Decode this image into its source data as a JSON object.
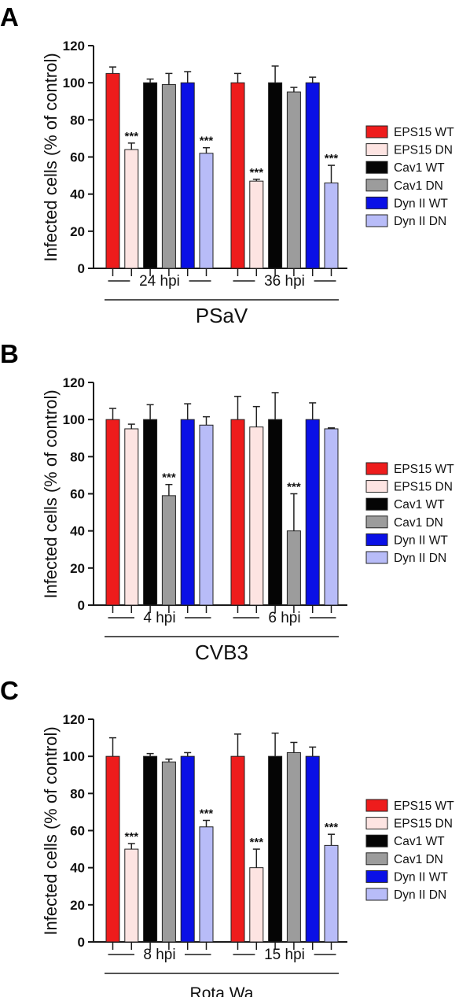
{
  "legend": [
    {
      "label": "EPS15 WT",
      "color": "#ee1c1c"
    },
    {
      "label": "EPS15 DN",
      "color": "#fde4e2"
    },
    {
      "label": "Cav1 WT",
      "color": "#050505"
    },
    {
      "label": "Cav1 DN",
      "color": "#9c9c9c"
    },
    {
      "label": "Dyn II WT",
      "color": "#0a10e6"
    },
    {
      "label": "Dyn II DN",
      "color": "#b8bcf8"
    }
  ],
  "chart_data": [
    {
      "type": "bar",
      "panel_label": "A",
      "title": "PSaV",
      "ylabel": "Infected cells (% of control)",
      "ylim": [
        0,
        120
      ],
      "yticks": [
        "0",
        "20",
        "40",
        "60",
        "80",
        "100",
        "120"
      ],
      "legend_position": "right",
      "grid": false,
      "groups": [
        {
          "label": "24 hpi",
          "values": [
            105,
            64,
            100,
            99,
            100,
            62
          ],
          "errors": [
            3.5,
            3.5,
            2,
            6,
            6,
            3
          ],
          "significance": [
            "",
            "***",
            "",
            "",
            "",
            "***"
          ]
        },
        {
          "label": "36 hpi",
          "values": [
            100,
            47,
            100,
            95,
            100,
            46
          ],
          "errors": [
            5,
            1,
            9,
            2.5,
            3,
            9.5
          ],
          "significance": [
            "",
            "***",
            "",
            "",
            "",
            "***"
          ]
        }
      ]
    },
    {
      "type": "bar",
      "panel_label": "B",
      "title": "CVB3",
      "ylabel": "Infected cells (% of control)",
      "ylim": [
        0,
        120
      ],
      "yticks": [
        "0",
        "20",
        "40",
        "60",
        "80",
        "100",
        "120"
      ],
      "legend_position": "right",
      "grid": false,
      "groups": [
        {
          "label": "4 hpi",
          "values": [
            100,
            95,
            100,
            59,
            100,
            97
          ],
          "errors": [
            6,
            2.5,
            8,
            6,
            8.5,
            4.5
          ],
          "significance": [
            "",
            "",
            "",
            "***",
            "",
            ""
          ]
        },
        {
          "label": "6 hpi",
          "values": [
            100,
            96,
            100,
            40,
            100,
            95
          ],
          "errors": [
            12.5,
            11,
            14.5,
            20,
            9,
            0.5
          ],
          "significance": [
            "",
            "",
            "",
            "***",
            "",
            ""
          ]
        }
      ]
    },
    {
      "type": "bar",
      "panel_label": "C",
      "title": "Rota Wa",
      "ylabel": "Infected cells (% of control)",
      "ylim": [
        0,
        120
      ],
      "yticks": [
        "0",
        "20",
        "40",
        "60",
        "80",
        "100",
        "120"
      ],
      "legend_position": "right",
      "grid": false,
      "groups": [
        {
          "label": "8 hpi",
          "values": [
            100,
            50,
            100,
            97,
            100,
            62
          ],
          "errors": [
            10,
            3,
            1.5,
            1.5,
            2,
            3.5
          ],
          "significance": [
            "",
            "***",
            "",
            "",
            "",
            "***"
          ]
        },
        {
          "label": "15 hpi",
          "values": [
            100,
            40,
            100,
            102,
            100,
            52
          ],
          "errors": [
            12,
            10,
            12.5,
            5.5,
            5,
            6
          ],
          "significance": [
            "",
            "***",
            "",
            "",
            "",
            "***"
          ]
        }
      ]
    }
  ]
}
